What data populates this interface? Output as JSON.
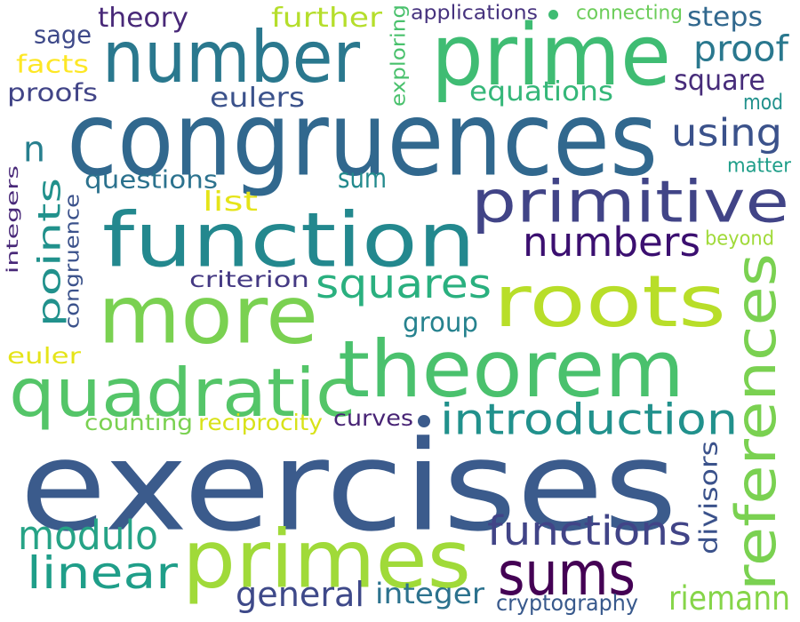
{
  "words": [
    {
      "text": "exercises",
      "color": "#3b5b8c"
    },
    {
      "text": "congruences",
      "color": "#31688e"
    },
    {
      "text": "prime",
      "color": "#3fbc73"
    },
    {
      "text": "number",
      "color": "#2a788e"
    },
    {
      "text": "function",
      "color": "#23888e"
    },
    {
      "text": "primitive",
      "color": "#414487"
    },
    {
      "text": "roots",
      "color": "#b8de29"
    },
    {
      "text": "more",
      "color": "#7ad151"
    },
    {
      "text": "theorem",
      "color": "#4ac16d"
    },
    {
      "text": "quadratic",
      "color": "#54c568"
    },
    {
      "text": "primes",
      "color": "#a0da39"
    },
    {
      "text": "references",
      "color": "#7ad151"
    },
    {
      "text": "introduction",
      "color": "#21918c"
    },
    {
      "text": "sums",
      "color": "#440154"
    },
    {
      "text": "functions",
      "color": "#414487"
    },
    {
      "text": "linear",
      "color": "#1f9e89"
    },
    {
      "text": "modulo",
      "color": "#26a386"
    },
    {
      "text": "numbers",
      "color": "#3b0f70"
    },
    {
      "text": "squares",
      "color": "#2ab07f"
    },
    {
      "text": "using",
      "color": "#3b528b"
    },
    {
      "text": "points",
      "color": "#21918c"
    },
    {
      "text": "proof",
      "color": "#2a788e"
    },
    {
      "text": "equations",
      "color": "#35b779"
    },
    {
      "text": "square",
      "color": "#472c7a"
    },
    {
      "text": "eulers",
      "color": "#3b528b"
    },
    {
      "text": "theory",
      "color": "#482878"
    },
    {
      "text": "further",
      "color": "#b5de2b"
    },
    {
      "text": "steps",
      "color": "#31688e"
    },
    {
      "text": "applications",
      "color": "#46327e"
    },
    {
      "text": "connecting",
      "color": "#6ccd5a"
    },
    {
      "text": "sage",
      "color": "#3e4989"
    },
    {
      "text": "facts",
      "color": "#fde725"
    },
    {
      "text": "proofs",
      "color": "#414487"
    },
    {
      "text": "exploring",
      "color": "#4ac16d"
    },
    {
      "text": "mod",
      "color": "#21918c"
    },
    {
      "text": "n",
      "color": "#277f8e"
    },
    {
      "text": "questions",
      "color": "#2c728e"
    },
    {
      "text": "sum",
      "color": "#238a8d"
    },
    {
      "text": "list",
      "color": "#e5e419"
    },
    {
      "text": "matter",
      "color": "#1f9e89"
    },
    {
      "text": "congruence",
      "color": "#3b528b"
    },
    {
      "text": "integers",
      "color": "#482878"
    },
    {
      "text": "beyond",
      "color": "#a0da39"
    },
    {
      "text": "criterion",
      "color": "#443983"
    },
    {
      "text": "group",
      "color": "#26828e"
    },
    {
      "text": "euler",
      "color": "#e5e419"
    },
    {
      "text": "counting",
      "color": "#7ad151"
    },
    {
      "text": "reciprocity",
      "color": "#d8e219"
    },
    {
      "text": "curves",
      "color": "#482475"
    },
    {
      "text": "divisors",
      "color": "#3b528b"
    },
    {
      "text": "general",
      "color": "#3e4989"
    },
    {
      "text": "integer",
      "color": "#2c728e"
    },
    {
      "text": "riemann",
      "color": "#86d549"
    },
    {
      "text": "cryptography",
      "color": "#38598c"
    }
  ],
  "dots": [
    {
      "color": "#3fbc73"
    },
    {
      "color": "#3b5b8c"
    }
  ]
}
